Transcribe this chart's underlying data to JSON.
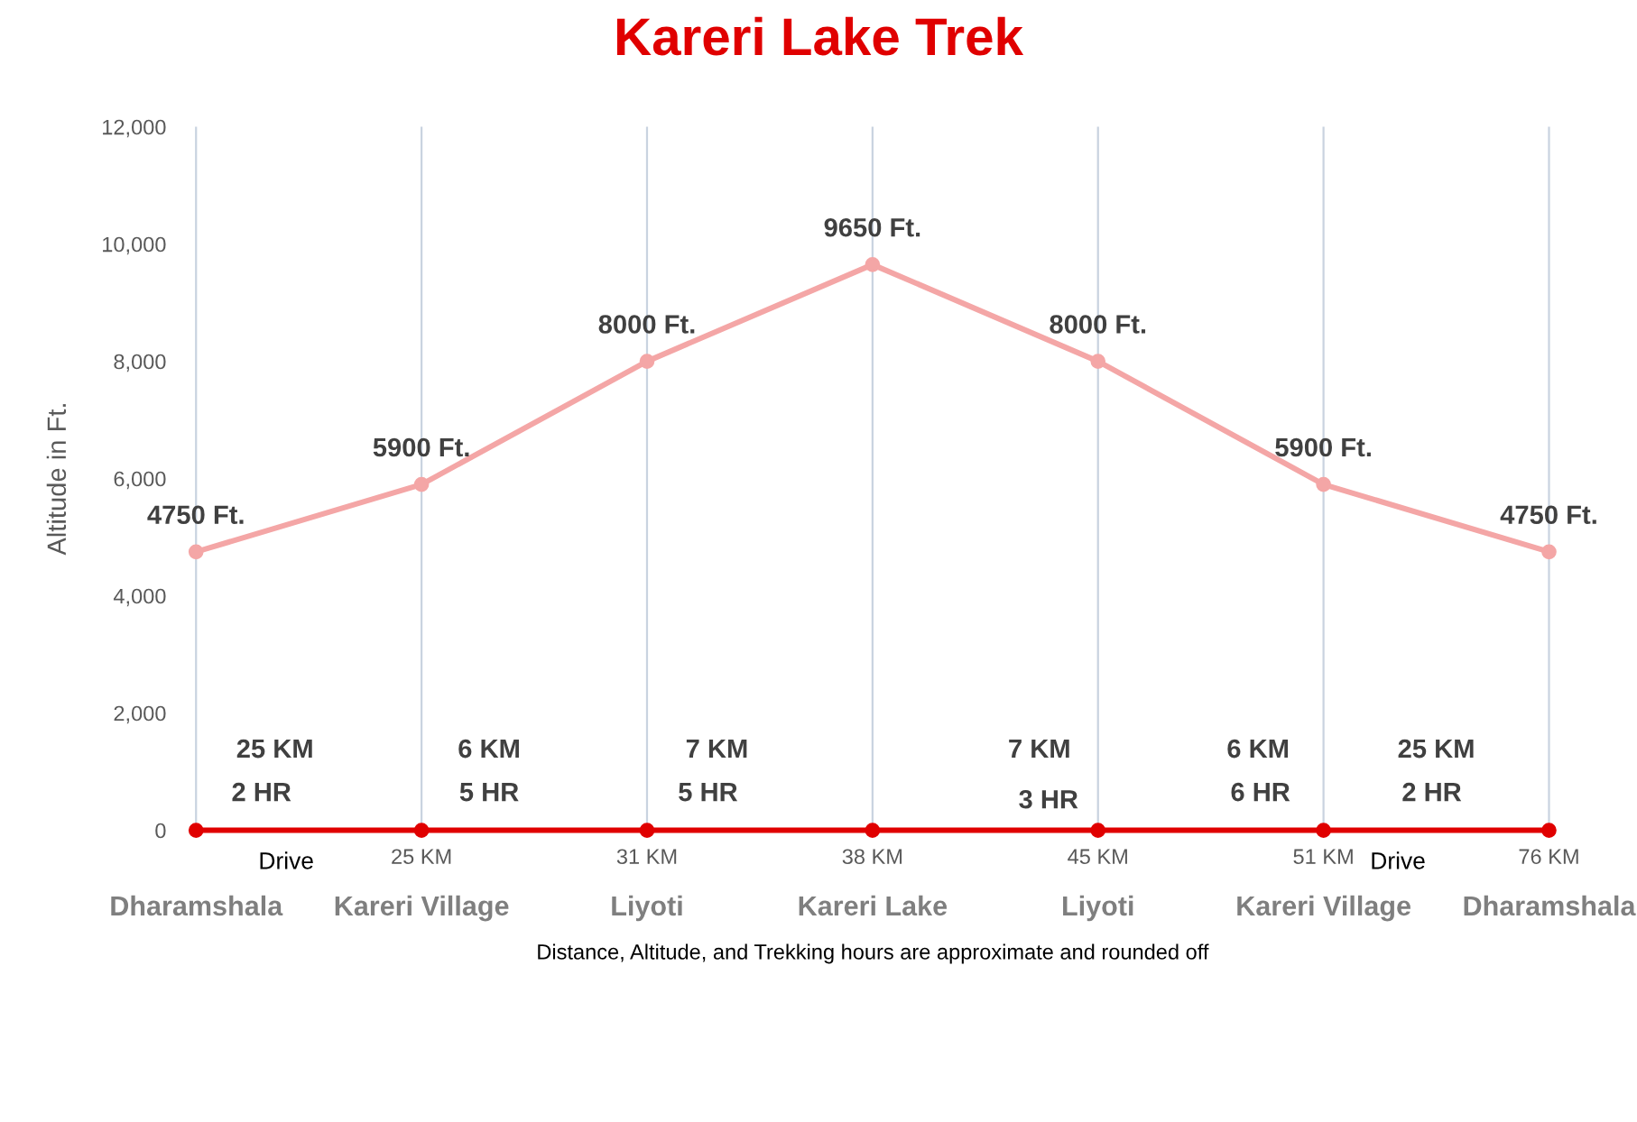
{
  "chart_data": {
    "type": "line",
    "title": "Kareri Lake Trek",
    "ylabel": "Altitude in Ft.",
    "categories": [
      "Dharamshala",
      "Kareri Village",
      "Liyoti",
      "Kareri Lake",
      "Liyoti",
      "Kareri Village",
      "Dharamshala"
    ],
    "series": [
      {
        "color": "#f4a6a6",
        "values": [
          4750,
          5900,
          8000,
          9650,
          8000,
          5900,
          4750
        ],
        "value_labels": [
          "4750 Ft.",
          "5900 Ft.",
          "8000 Ft.",
          "9650 Ft.",
          "8000 Ft.",
          "5900 Ft.",
          "4750 Ft."
        ]
      },
      {
        "color": "#e00000",
        "values": [
          0,
          0,
          0,
          0,
          0,
          0,
          0
        ]
      }
    ],
    "ylim": [
      0,
      12000
    ],
    "yticks": [
      {
        "value": 0,
        "label": "0"
      },
      {
        "value": 2000,
        "label": "2,000"
      },
      {
        "value": 4000,
        "label": "4,000"
      },
      {
        "value": 6000,
        "label": "6,000"
      },
      {
        "value": 8000,
        "label": "8,000"
      },
      {
        "value": 10000,
        "label": "10,000"
      },
      {
        "value": 12000,
        "label": "12,000"
      }
    ],
    "grid": "x",
    "marker": "circle",
    "line_style": "solid",
    "annotations": [
      "25 KM",
      "2 HR",
      "Drive",
      "6 KM",
      "5 HR",
      "7 KM",
      "5 HR",
      "7 KM",
      "3 HR",
      "6 KM",
      "6 HR",
      "25 KM",
      "2 HR",
      "Drive",
      "25 KM",
      "31 KM",
      "38 KM",
      "45 KM",
      "51 KM",
      "76 KM",
      "Distance, Altitude, and Trekking hours are approximate and rounded off"
    ]
  }
}
